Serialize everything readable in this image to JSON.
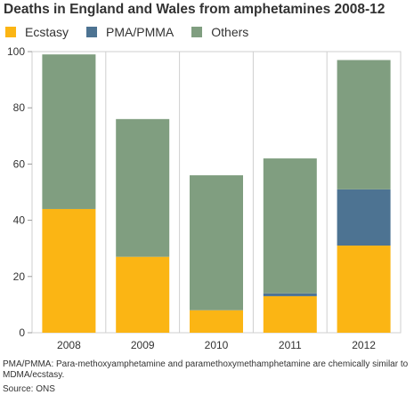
{
  "chart_data": {
    "type": "bar",
    "stacked": true,
    "title": "Deaths in England and Wales from amphetamines 2008-12",
    "categories": [
      "2008",
      "2009",
      "2010",
      "2011",
      "2012"
    ],
    "series": [
      {
        "name": "Ecstasy",
        "color": "#fbb514",
        "values": [
          44,
          27,
          8,
          13,
          31
        ]
      },
      {
        "name": "PMA/PMMA",
        "color": "#4d7392",
        "values": [
          0,
          0,
          0,
          1,
          20
        ]
      },
      {
        "name": "Others",
        "color": "#809e80",
        "values": [
          55,
          49,
          48,
          48,
          46
        ]
      }
    ],
    "ylim": [
      0,
      100
    ],
    "yticks": [
      0,
      20,
      40,
      60,
      80,
      100
    ],
    "grid": "vertical separators between categories",
    "legend": "top-left"
  },
  "footnote": "PMA/PMMA: Para-methoxyamphetamine and paramethoxymethamphetamine are chemically similar to MDMA/ecstasy.",
  "source": "Source: ONS"
}
